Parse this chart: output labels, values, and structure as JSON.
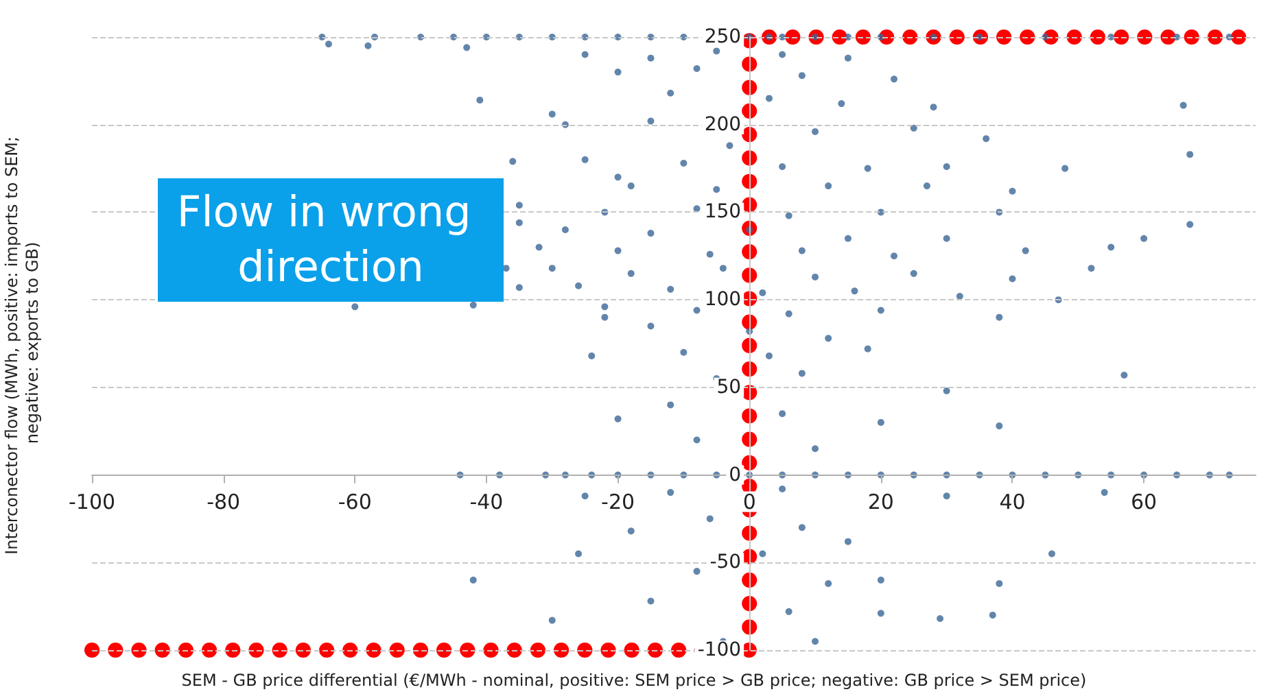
{
  "chart_data": {
    "type": "scatter",
    "xlabel": "SEM - GB price differential (€/MWh - nominal, positive: SEM price > GB price; negative: GB price > SEM price)",
    "ylabel": "Interconector flow (MWh, positive: imports to SEM; negative: exports to GB)",
    "annotations": [
      "Flow in wrong direction"
    ],
    "xlim": [
      -100,
      77
    ],
    "ylim": [
      -100,
      250
    ],
    "xticks": [
      -100,
      -80,
      -60,
      -40,
      -20,
      0,
      20,
      40,
      60
    ],
    "yticks": [
      -100,
      -50,
      0,
      50,
      100,
      150,
      200,
      250
    ],
    "grid": "y",
    "marker": "circle",
    "series": [
      {
        "type": "scatter",
        "color": "#3b6796",
        "x": [
          -65,
          -57,
          -50,
          -45,
          -40,
          -35,
          -30,
          -25,
          -20,
          -15,
          -10,
          3,
          0,
          5,
          10,
          15,
          20,
          28,
          35,
          45,
          55,
          65,
          73,
          -44,
          -38,
          -31,
          -28,
          -24,
          -20,
          -15,
          -10,
          -5,
          0,
          5,
          10,
          15,
          20,
          25,
          30,
          35,
          40,
          45,
          50,
          55,
          60,
          65,
          70,
          73,
          -64,
          -58,
          -43,
          -41,
          -30,
          -36,
          -20,
          -35,
          -35,
          -37,
          -35,
          -60,
          -42,
          -25,
          -15,
          -5,
          5,
          15,
          -20,
          -8,
          8,
          22,
          -12,
          3,
          14,
          28,
          -28,
          -15,
          -3,
          10,
          25,
          36,
          -25,
          -10,
          5,
          18,
          30,
          48,
          -18,
          -5,
          12,
          27,
          40,
          -22,
          -8,
          6,
          20,
          38,
          -28,
          -15,
          0,
          15,
          30,
          60,
          -32,
          -20,
          -6,
          8,
          22,
          42,
          55,
          -30,
          -18,
          -4,
          10,
          25,
          40,
          52,
          -26,
          -12,
          2,
          16,
          32,
          47,
          -22,
          -8,
          6,
          20,
          38,
          -15,
          0,
          12,
          -10,
          3,
          18,
          -5,
          8,
          30,
          57,
          -12,
          5,
          20,
          -20,
          38,
          -8,
          10,
          -25,
          -12,
          5,
          30,
          54,
          -18,
          -6,
          8,
          -26,
          2,
          15,
          46,
          -8,
          12,
          20,
          38,
          -15,
          -30,
          6,
          20,
          37,
          29,
          -4,
          10,
          -42,
          -24,
          -22,
          66,
          67,
          67
        ],
        "values": [
          250,
          250,
          250,
          250,
          250,
          250,
          250,
          250,
          250,
          250,
          250,
          250,
          250,
          250,
          250,
          250,
          250,
          250,
          250,
          250,
          250,
          250,
          250,
          0,
          0,
          0,
          0,
          0,
          0,
          0,
          0,
          0,
          0,
          0,
          0,
          0,
          0,
          0,
          0,
          0,
          0,
          0,
          0,
          0,
          0,
          0,
          0,
          0,
          246,
          245,
          244,
          214,
          206,
          179,
          170,
          154,
          144,
          118,
          107,
          96,
          97,
          240,
          238,
          242,
          240,
          238,
          230,
          232,
          228,
          226,
          218,
          215,
          212,
          210,
          200,
          202,
          188,
          196,
          198,
          192,
          180,
          178,
          176,
          175,
          176,
          175,
          165,
          163,
          165,
          165,
          162,
          150,
          152,
          148,
          150,
          150,
          140,
          138,
          140,
          135,
          135,
          135,
          130,
          128,
          126,
          128,
          125,
          128,
          130,
          118,
          115,
          118,
          113,
          115,
          112,
          118,
          108,
          106,
          104,
          105,
          102,
          100,
          96,
          94,
          92,
          94,
          90,
          85,
          82,
          78,
          70,
          68,
          72,
          55,
          58,
          48,
          57,
          40,
          35,
          30,
          32,
          28,
          20,
          15,
          -12,
          -10,
          -8,
          -12,
          -10,
          -32,
          -25,
          -30,
          -45,
          -45,
          -38,
          -45,
          -55,
          -62,
          -60,
          -62,
          -72,
          -83,
          -78,
          -79,
          -80,
          -82,
          -95,
          -95,
          -60,
          68,
          90,
          211,
          183,
          143
        ]
      },
      {
        "type": "line",
        "color": "#ff0000",
        "line_style": "dotted",
        "marker": "none",
        "x": [
          -100,
          0,
          0,
          77
        ],
        "values": [
          -100,
          -100,
          250,
          250
        ]
      }
    ]
  }
}
